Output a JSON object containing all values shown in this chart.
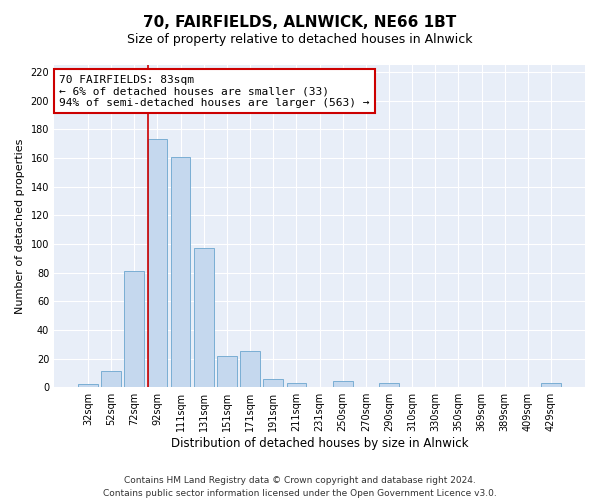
{
  "title": "70, FAIRFIELDS, ALNWICK, NE66 1BT",
  "subtitle": "Size of property relative to detached houses in Alnwick",
  "xlabel": "Distribution of detached houses by size in Alnwick",
  "ylabel": "Number of detached properties",
  "categories": [
    "32sqm",
    "52sqm",
    "72sqm",
    "92sqm",
    "111sqm",
    "131sqm",
    "151sqm",
    "171sqm",
    "191sqm",
    "211sqm",
    "231sqm",
    "250sqm",
    "270sqm",
    "290sqm",
    "310sqm",
    "330sqm",
    "350sqm",
    "369sqm",
    "389sqm",
    "409sqm",
    "429sqm"
  ],
  "values": [
    2,
    11,
    81,
    173,
    161,
    97,
    22,
    25,
    6,
    3,
    0,
    4,
    0,
    3,
    0,
    0,
    0,
    0,
    0,
    0,
    3
  ],
  "bar_color": "#c5d8ee",
  "bar_edge_color": "#7aaed4",
  "vline_color": "#cc0000",
  "annotation_line1": "70 FAIRFIELDS: 83sqm",
  "annotation_line2": "← 6% of detached houses are smaller (33)",
  "annotation_line3": "94% of semi-detached houses are larger (563) →",
  "annotation_box_color": "#ffffff",
  "annotation_box_edge_color": "#cc0000",
  "ylim": [
    0,
    225
  ],
  "yticks": [
    0,
    20,
    40,
    60,
    80,
    100,
    120,
    140,
    160,
    180,
    200,
    220
  ],
  "footer1": "Contains HM Land Registry data © Crown copyright and database right 2024.",
  "footer2": "Contains public sector information licensed under the Open Government Licence v3.0.",
  "bg_color": "#ffffff",
  "plot_bg_color": "#e8eef8",
  "grid_color": "#ffffff",
  "title_fontsize": 11,
  "subtitle_fontsize": 9,
  "xlabel_fontsize": 8.5,
  "ylabel_fontsize": 8,
  "tick_fontsize": 7,
  "annotation_fontsize": 8,
  "footer_fontsize": 6.5
}
